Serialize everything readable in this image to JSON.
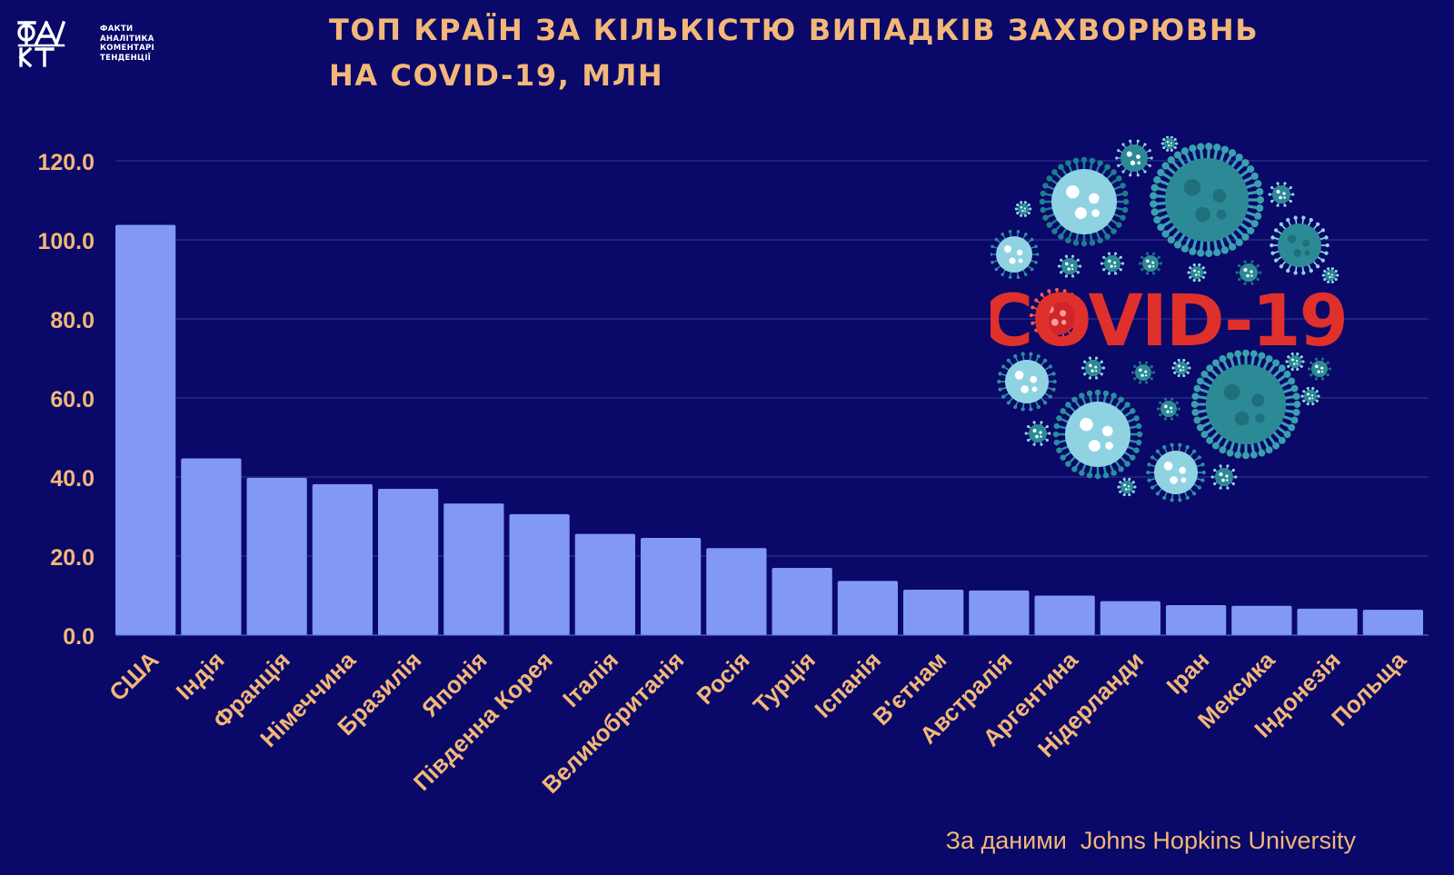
{
  "brand": {
    "logo_lines": [
      "ФАКТИ",
      "АНАЛІТИКА",
      "КОМЕНТАРІ",
      "ТЕНДЕНЦІЇ"
    ]
  },
  "title_lines": [
    "ТОП КРАЇН ЗА КІЛЬКІСТЮ ВИПАДКІВ ЗАХВОРЮВНЬ",
    "НА COVID-19, МЛН"
  ],
  "source": "За даними  Johns Hopkins University",
  "art": {
    "label": "COVID-19",
    "icon": "coronavirus-illustration"
  },
  "colors": {
    "background": "#0a0868",
    "bar": "#8198f4",
    "text": "#f3b779",
    "covid_red": "#e0302c",
    "virus_teal": "#2b8a96",
    "virus_light": "#8fd3e2"
  },
  "chart_data": {
    "type": "bar",
    "title": "ТОП КРАЇН ЗА КІЛЬКІСТЮ ВИПАДКІВ ЗАХВОРЮВНЬ НА COVID-19, МЛН",
    "categories": [
      "США",
      "Індія",
      "Франція",
      "Німеччина",
      "Бразилія",
      "Японія",
      "Південна Корея",
      "Італія",
      "Великобританія",
      "Росія",
      "Туреччина",
      "Іспанія",
      "В'єтнам",
      "Австралія",
      "Аргентина",
      "Нідерланди",
      "Іран",
      "Мексика",
      "Індонезія",
      "Польща"
    ],
    "tick_labels": [
      "США",
      "Індія",
      "Франція",
      "Німеччина",
      "Бразилія",
      "Японія",
      "Південна Корея",
      "Італія",
      "Великобританія",
      "Росія",
      "Турція",
      "Іспанія",
      "В'єтнам",
      "Австралія",
      "Аргентина",
      "Нідерланди",
      "Іран",
      "Мексика",
      "Індонезія",
      "Польща"
    ],
    "values": [
      103.8,
      44.7,
      39.8,
      38.2,
      37.0,
      33.3,
      30.6,
      25.6,
      24.6,
      22.0,
      17.0,
      13.7,
      11.5,
      11.3,
      10.0,
      8.6,
      7.6,
      7.4,
      6.7,
      6.4
    ],
    "ylim": [
      0,
      120
    ],
    "yticks": [
      0,
      20,
      40,
      60,
      80,
      100,
      120
    ],
    "ytick_labels": [
      "0.0",
      "20.0",
      "40.0",
      "60.0",
      "80.0",
      "100.0",
      "120.0"
    ],
    "grid": true,
    "xlabel": "",
    "ylabel": ""
  }
}
